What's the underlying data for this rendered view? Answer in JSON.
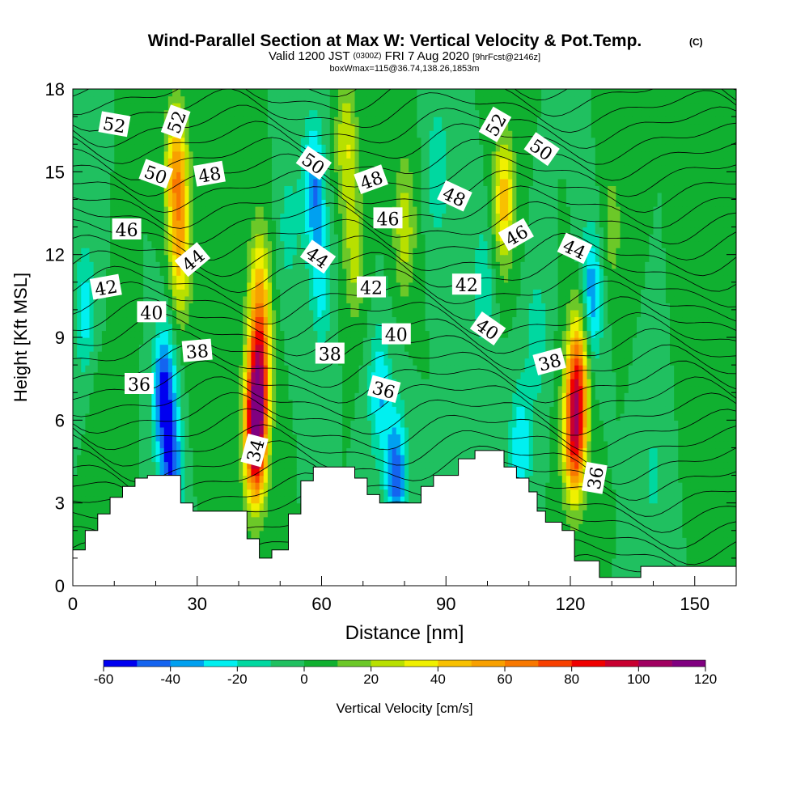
{
  "title": {
    "main": "Wind-Parallel Section at Max W: Vertical Velocity & Pot.Temp.",
    "copyright": "(C)",
    "valid_prefix": "Valid 1200 JST",
    "valid_z": "(0300Z)",
    "valid_date": "FRI 7 Aug 2020",
    "forecast": "[9hrFcst@2146z]",
    "box": "boxWmax=115@36.74,138.26,1853m"
  },
  "chart_data": {
    "type": "heatmap",
    "xlabel": "Distance [nm]",
    "ylabel": "Height [Kft MSL]",
    "xlim": [
      0,
      160
    ],
    "ylim": [
      0,
      18
    ],
    "x_ticks": [
      "0",
      "30",
      "60",
      "90",
      "120",
      "150"
    ],
    "y_ticks": [
      "0",
      "3",
      "6",
      "9",
      "12",
      "15",
      "18"
    ],
    "colorbar": {
      "label": "Vertical Velocity [cm/s]",
      "ticks": [
        "-60",
        "-40",
        "-20",
        "0",
        "20",
        "40",
        "60",
        "80",
        "100",
        "120"
      ],
      "levels": [
        -60,
        -50,
        -40,
        -30,
        -20,
        -10,
        0,
        10,
        20,
        30,
        40,
        50,
        60,
        70,
        80,
        90,
        100,
        110,
        120
      ],
      "colors": [
        "#0000f0",
        "#1464f0",
        "#00a0f0",
        "#00f0f0",
        "#00d8a0",
        "#20c060",
        "#10b030",
        "#6cc828",
        "#b8e000",
        "#f0f000",
        "#f8c000",
        "#f8a000",
        "#f87800",
        "#f84000",
        "#f00000",
        "#c80030",
        "#a00060",
        "#800080"
      ]
    },
    "velocity_features": [
      {
        "x": 3,
        "y": 10,
        "w": -25
      },
      {
        "x": 6,
        "y": 6.5,
        "w": 5
      },
      {
        "x": 12,
        "y": 8,
        "w": 8
      },
      {
        "x": 22,
        "y": 7,
        "w": -55
      },
      {
        "x": 24,
        "y": 4,
        "w": -45
      },
      {
        "x": 25,
        "y": 15,
        "w": 55
      },
      {
        "x": 26,
        "y": 12,
        "w": 40
      },
      {
        "x": 30,
        "y": 7,
        "w": 5
      },
      {
        "x": 44,
        "y": 5.5,
        "w": 110
      },
      {
        "x": 45,
        "y": 8,
        "w": 70
      },
      {
        "x": 45,
        "y": 11,
        "w": 35
      },
      {
        "x": 52,
        "y": 13,
        "w": -15
      },
      {
        "x": 58,
        "y": 14.5,
        "w": -40
      },
      {
        "x": 60,
        "y": 11,
        "w": -25
      },
      {
        "x": 66,
        "y": 16,
        "w": 30
      },
      {
        "x": 68,
        "y": 12,
        "w": 25
      },
      {
        "x": 74,
        "y": 7,
        "w": -30
      },
      {
        "x": 78,
        "y": 4,
        "w": -45
      },
      {
        "x": 80,
        "y": 13,
        "w": 28
      },
      {
        "x": 88,
        "y": 15,
        "w": -20
      },
      {
        "x": 95,
        "y": 7,
        "w": -10
      },
      {
        "x": 99,
        "y": 11,
        "w": -18
      },
      {
        "x": 104,
        "y": 14,
        "w": 45
      },
      {
        "x": 108,
        "y": 5,
        "w": -30
      },
      {
        "x": 112,
        "y": 9,
        "w": -18
      },
      {
        "x": 121,
        "y": 5.5,
        "w": 85
      },
      {
        "x": 122,
        "y": 8,
        "w": 55
      },
      {
        "x": 125,
        "y": 10.5,
        "w": -40
      },
      {
        "x": 130,
        "y": 13,
        "w": 15
      },
      {
        "x": 140,
        "y": 4,
        "w": -12
      },
      {
        "x": 150,
        "y": 8,
        "w": 3
      }
    ],
    "background_w": 0,
    "theta_contour_labels": [
      {
        "text": "52",
        "x": 10,
        "y": 16.7,
        "angle": 10
      },
      {
        "text": "52",
        "x": 25,
        "y": 16.8,
        "angle": -70
      },
      {
        "text": "50",
        "x": 20,
        "y": 14.9,
        "angle": 20
      },
      {
        "text": "48",
        "x": 33,
        "y": 14.9,
        "angle": -10
      },
      {
        "text": "46",
        "x": 13,
        "y": 12.9,
        "angle": 0
      },
      {
        "text": "44",
        "x": 29,
        "y": 11.8,
        "angle": -40
      },
      {
        "text": "42",
        "x": 8,
        "y": 10.8,
        "angle": -10
      },
      {
        "text": "40",
        "x": 19,
        "y": 9.9,
        "angle": 0
      },
      {
        "text": "38",
        "x": 30,
        "y": 8.5,
        "angle": -5
      },
      {
        "text": "36",
        "x": 16,
        "y": 7.3,
        "angle": 0
      },
      {
        "text": "34",
        "x": 44,
        "y": 4.9,
        "angle": -75
      },
      {
        "text": "50",
        "x": 58,
        "y": 15.3,
        "angle": 35
      },
      {
        "text": "48",
        "x": 72,
        "y": 14.7,
        "angle": -20
      },
      {
        "text": "46",
        "x": 76,
        "y": 13.3,
        "angle": 0
      },
      {
        "text": "44",
        "x": 59,
        "y": 11.9,
        "angle": 35
      },
      {
        "text": "42",
        "x": 72,
        "y": 10.8,
        "angle": 0
      },
      {
        "text": "40",
        "x": 78,
        "y": 9.1,
        "angle": 0
      },
      {
        "text": "38",
        "x": 62,
        "y": 8.4,
        "angle": 0
      },
      {
        "text": "36",
        "x": 75,
        "y": 7.1,
        "angle": 15
      },
      {
        "text": "52",
        "x": 102,
        "y": 16.7,
        "angle": -60
      },
      {
        "text": "50",
        "x": 113,
        "y": 15.8,
        "angle": 35
      },
      {
        "text": "48",
        "x": 92,
        "y": 14.1,
        "angle": 25
      },
      {
        "text": "46",
        "x": 107,
        "y": 12.7,
        "angle": -30
      },
      {
        "text": "44",
        "x": 121,
        "y": 12.2,
        "angle": 25
      },
      {
        "text": "42",
        "x": 95,
        "y": 10.9,
        "angle": 0
      },
      {
        "text": "40",
        "x": 100,
        "y": 9.3,
        "angle": 35
      },
      {
        "text": "38",
        "x": 115,
        "y": 8.1,
        "angle": -15
      },
      {
        "text": "36",
        "x": 126,
        "y": 3.9,
        "angle": -80
      }
    ],
    "terrain": [
      [
        0,
        1.3
      ],
      [
        3,
        1.3
      ],
      [
        3,
        2.0
      ],
      [
        6,
        2.0
      ],
      [
        6,
        2.6
      ],
      [
        9,
        2.6
      ],
      [
        9,
        3.2
      ],
      [
        12,
        3.2
      ],
      [
        12,
        3.6
      ],
      [
        15,
        3.6
      ],
      [
        15,
        3.9
      ],
      [
        18,
        3.9
      ],
      [
        18,
        4.0
      ],
      [
        26,
        4.0
      ],
      [
        26,
        3.0
      ],
      [
        29,
        3.0
      ],
      [
        29,
        2.7
      ],
      [
        42,
        2.7
      ],
      [
        42,
        1.7
      ],
      [
        45,
        1.7
      ],
      [
        45,
        1.0
      ],
      [
        48,
        1.0
      ],
      [
        48,
        1.3
      ],
      [
        52,
        1.3
      ],
      [
        52,
        2.6
      ],
      [
        55,
        2.6
      ],
      [
        55,
        3.8
      ],
      [
        58,
        3.8
      ],
      [
        58,
        4.3
      ],
      [
        68,
        4.3
      ],
      [
        68,
        3.9
      ],
      [
        71,
        3.9
      ],
      [
        71,
        3.3
      ],
      [
        74,
        3.3
      ],
      [
        74,
        3.0
      ],
      [
        84,
        3.0
      ],
      [
        84,
        3.6
      ],
      [
        87,
        3.6
      ],
      [
        87,
        4.0
      ],
      [
        93,
        4.0
      ],
      [
        93,
        4.6
      ],
      [
        97,
        4.6
      ],
      [
        97,
        4.9
      ],
      [
        104,
        4.9
      ],
      [
        104,
        4.3
      ],
      [
        107,
        4.3
      ],
      [
        107,
        3.9
      ],
      [
        110,
        3.9
      ],
      [
        110,
        3.4
      ],
      [
        112,
        3.4
      ],
      [
        112,
        2.7
      ],
      [
        114,
        2.7
      ],
      [
        114,
        2.3
      ],
      [
        118,
        2.3
      ],
      [
        118,
        2.0
      ],
      [
        121,
        2.0
      ],
      [
        121,
        0.9
      ],
      [
        127,
        0.9
      ],
      [
        127,
        0.3
      ],
      [
        137,
        0.3
      ],
      [
        137,
        0.7
      ],
      [
        160,
        0.7
      ]
    ]
  }
}
